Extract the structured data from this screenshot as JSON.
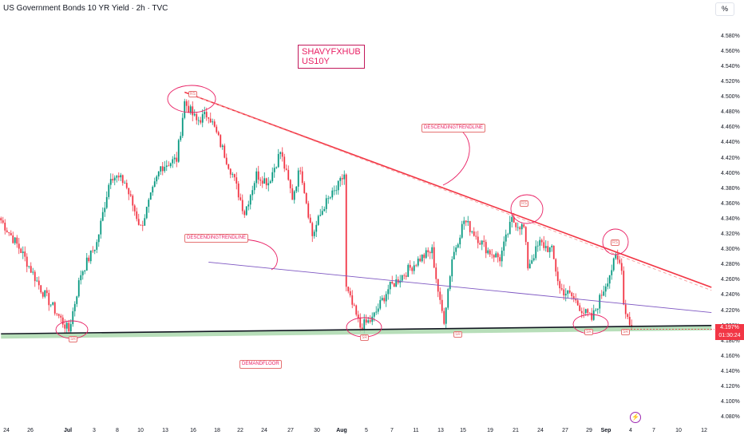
{
  "header": {
    "title": "US Government Bonds 10 YR Yield · 2h · TVC",
    "unit_button": "%"
  },
  "annotations": {
    "watermark_lines": [
      "SHAVYFXHUB",
      "US10Y"
    ],
    "descending_trendline_upper": "DESCENDINGTRENDLINE",
    "descending_trendline_lower": "DESCENDINGTRENDLINE",
    "demand_floor": "DEMANDFLOOR",
    "rs_markers": [
      "RS",
      "RS",
      "RS"
    ],
    "sr_markers": [
      "SR",
      "SR",
      "SR",
      "SR",
      "SR",
      "SR"
    ]
  },
  "price_label": {
    "value": "4.197%",
    "countdown": "01:30:24"
  },
  "colors": {
    "up": "#089981",
    "down": "#f23645",
    "upper_trendline": "#f23645",
    "lower_trendline": "#7e57c2",
    "support": "#131722",
    "support_zone": "#a5d6a7",
    "annotation": "#e91e63"
  },
  "icons": {
    "alert": "lightning-icon"
  },
  "chart_data": {
    "type": "candlestick",
    "y_axis": {
      "ylim": [
        4.074,
        4.608
      ],
      "ticks": [
        "4.580%",
        "4.560%",
        "4.540%",
        "4.520%",
        "4.500%",
        "4.480%",
        "4.460%",
        "4.440%",
        "4.420%",
        "4.400%",
        "4.380%",
        "4.360%",
        "4.340%",
        "4.320%",
        "4.300%",
        "4.280%",
        "4.260%",
        "4.240%",
        "4.220%",
        "4.200%",
        "4.180%",
        "4.160%",
        "4.140%",
        "4.120%",
        "4.100%",
        "4.080%"
      ]
    },
    "x_axis": {
      "ticks": [
        {
          "label": "24",
          "bold": false
        },
        {
          "label": "26",
          "bold": false
        },
        {
          "label": "Jul",
          "bold": true
        },
        {
          "label": "3",
          "bold": false
        },
        {
          "label": "8",
          "bold": false
        },
        {
          "label": "10",
          "bold": false
        },
        {
          "label": "13",
          "bold": false
        },
        {
          "label": "16",
          "bold": false
        },
        {
          "label": "18",
          "bold": false
        },
        {
          "label": "22",
          "bold": false
        },
        {
          "label": "24",
          "bold": false
        },
        {
          "label": "27",
          "bold": false
        },
        {
          "label": "30",
          "bold": false
        },
        {
          "label": "Aug",
          "bold": true
        },
        {
          "label": "5",
          "bold": false
        },
        {
          "label": "7",
          "bold": false
        },
        {
          "label": "11",
          "bold": false
        },
        {
          "label": "13",
          "bold": false
        },
        {
          "label": "15",
          "bold": false
        },
        {
          "label": "19",
          "bold": false
        },
        {
          "label": "21",
          "bold": false
        },
        {
          "label": "24",
          "bold": false
        },
        {
          "label": "27",
          "bold": false
        },
        {
          "label": "29",
          "bold": false
        },
        {
          "label": "Sep",
          "bold": true
        },
        {
          "label": "4",
          "bold": false
        },
        {
          "label": "7",
          "bold": false
        },
        {
          "label": "10",
          "bold": false
        },
        {
          "label": "12",
          "bold": false
        }
      ]
    },
    "anchors": [
      [
        0,
        4.34
      ],
      [
        10,
        4.3
      ],
      [
        20,
        4.25
      ],
      [
        30,
        4.21
      ],
      [
        34,
        4.195
      ],
      [
        40,
        4.27
      ],
      [
        48,
        4.31
      ],
      [
        55,
        4.4
      ],
      [
        62,
        4.39
      ],
      [
        70,
        4.33
      ],
      [
        80,
        4.41
      ],
      [
        88,
        4.42
      ],
      [
        92,
        4.495
      ],
      [
        98,
        4.47
      ],
      [
        104,
        4.48
      ],
      [
        110,
        4.44
      ],
      [
        116,
        4.4
      ],
      [
        122,
        4.35
      ],
      [
        128,
        4.4
      ],
      [
        134,
        4.39
      ],
      [
        140,
        4.43
      ],
      [
        146,
        4.37
      ],
      [
        150,
        4.41
      ],
      [
        156,
        4.32
      ],
      [
        162,
        4.36
      ],
      [
        168,
        4.38
      ],
      [
        172,
        4.4
      ],
      [
        173,
        4.25
      ],
      [
        180,
        4.2
      ],
      [
        186,
        4.21
      ],
      [
        194,
        4.25
      ],
      [
        202,
        4.27
      ],
      [
        210,
        4.29
      ],
      [
        216,
        4.3
      ],
      [
        220,
        4.23
      ],
      [
        222,
        4.21
      ],
      [
        226,
        4.29
      ],
      [
        232,
        4.34
      ],
      [
        238,
        4.32
      ],
      [
        244,
        4.3
      ],
      [
        250,
        4.29
      ],
      [
        256,
        4.34
      ],
      [
        262,
        4.33
      ],
      [
        264,
        4.28
      ],
      [
        270,
        4.31
      ],
      [
        276,
        4.3
      ],
      [
        280,
        4.25
      ],
      [
        286,
        4.24
      ],
      [
        292,
        4.22
      ],
      [
        296,
        4.21
      ],
      [
        302,
        4.25
      ],
      [
        308,
        4.29
      ],
      [
        311,
        4.28
      ],
      [
        312,
        4.23
      ],
      [
        316,
        4.197
      ]
    ],
    "trendlines": {
      "upper_descending": {
        "from": [
          92,
          4.508
        ],
        "to": [
          356,
          4.252
        ]
      },
      "lower_descending": {
        "from": [
          104,
          4.285
        ],
        "to": [
          356,
          4.219
        ]
      },
      "support_floor": {
        "from": [
          0,
          4.191
        ],
        "to": [
          356,
          4.202
        ]
      }
    }
  }
}
